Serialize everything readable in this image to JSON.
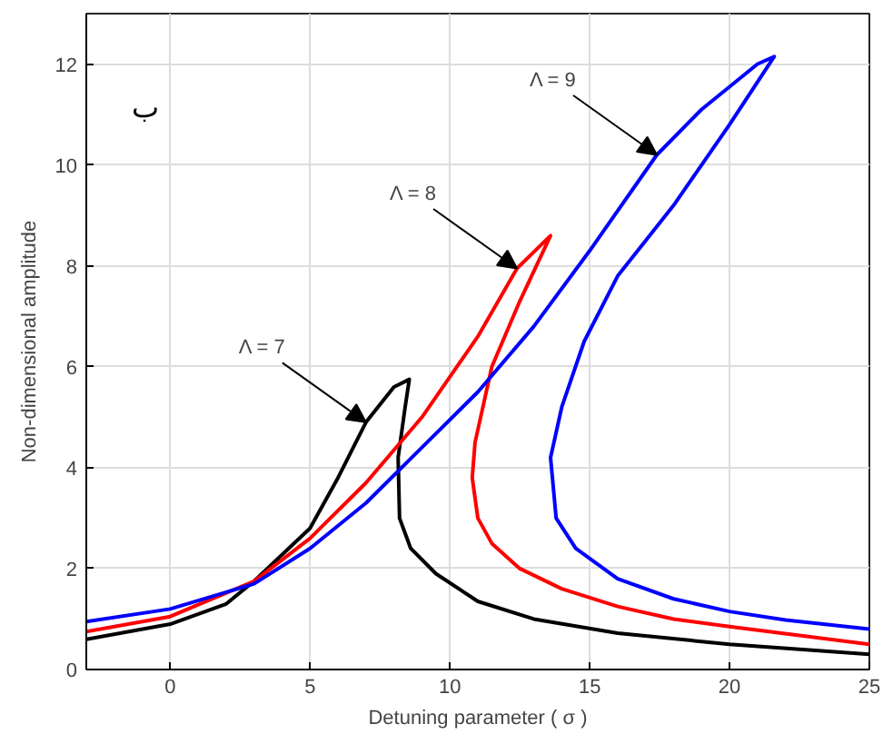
{
  "chart_data": {
    "type": "line",
    "xlabel": "Detuning parameter ( σ )",
    "ylabel": "Non-dimensional amplitude",
    "xlim": [
      -3,
      25
    ],
    "ylim": [
      0,
      13
    ],
    "xticks": [
      0,
      5,
      10,
      15,
      20,
      25
    ],
    "yticks": [
      0,
      2,
      4,
      6,
      8,
      10,
      12
    ],
    "grid": true,
    "line_style": "solid",
    "marker": "none",
    "series": [
      {
        "color": "#000000",
        "x": [
          -3,
          0,
          2,
          3,
          5,
          6,
          7,
          8,
          8.55,
          8.4,
          8.15,
          8.2,
          8.6,
          9.5,
          11,
          13,
          16,
          20,
          25
        ],
        "values": [
          0.6,
          0.9,
          1.3,
          1.75,
          2.8,
          3.8,
          4.9,
          5.6,
          5.75,
          5.2,
          4.2,
          3.0,
          2.4,
          1.9,
          1.35,
          1.0,
          0.72,
          0.5,
          0.3
        ]
      },
      {
        "color": "#ff0000",
        "x": [
          -3,
          0,
          3,
          5,
          7,
          9,
          11,
          12.4,
          13.6,
          12.5,
          11.5,
          10.9,
          10.8,
          11,
          11.5,
          12.5,
          14,
          16,
          18,
          20,
          25
        ],
        "values": [
          0.75,
          1.05,
          1.75,
          2.6,
          3.7,
          5.0,
          6.6,
          7.95,
          8.6,
          7.3,
          6.0,
          4.5,
          3.8,
          3.0,
          2.5,
          2.0,
          1.6,
          1.25,
          1.0,
          0.85,
          0.5
        ]
      },
      {
        "color": "#0000ff",
        "x": [
          -3,
          0,
          3,
          5,
          7,
          9,
          11,
          13,
          15,
          17.4,
          19,
          21,
          21.6,
          20,
          18,
          16,
          14.8,
          14,
          13.6,
          13.8,
          14.5,
          16,
          18,
          20,
          22,
          25
        ],
        "values": [
          0.95,
          1.2,
          1.7,
          2.4,
          3.3,
          4.4,
          5.5,
          6.8,
          8.3,
          10.2,
          11.1,
          12.0,
          12.15,
          10.8,
          9.2,
          7.8,
          6.5,
          5.2,
          4.2,
          3.0,
          2.4,
          1.8,
          1.4,
          1.15,
          0.98,
          0.8
        ]
      }
    ],
    "annotations": [
      "ب",
      {
        "text": "Λ = 7",
        "x": 7,
        "y": 4.9
      },
      {
        "text": "Λ = 8",
        "x": 12.4,
        "y": 7.95
      },
      {
        "text": "Λ = 9",
        "x": 17.4,
        "y": 10.2
      }
    ]
  }
}
